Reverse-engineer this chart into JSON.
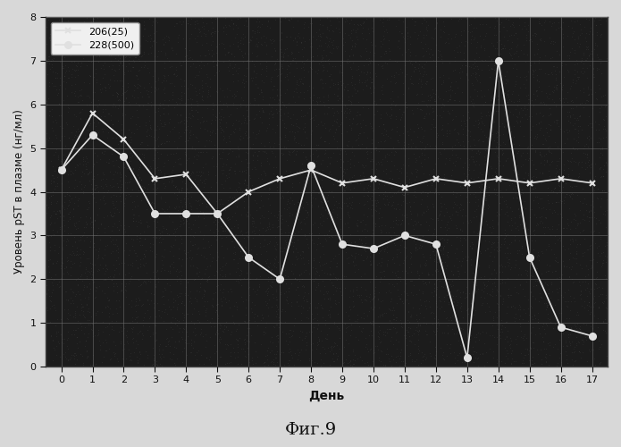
{
  "title": "",
  "xlabel": "День",
  "ylabel": "Уровень pST в плазме (нг/мл)",
  "caption": "Фиг.9",
  "xlim": [
    -0.5,
    17.5
  ],
  "ylim": [
    0.0,
    8.0
  ],
  "xticks": [
    0,
    1,
    2,
    3,
    4,
    5,
    6,
    7,
    8,
    9,
    10,
    11,
    12,
    13,
    14,
    15,
    16,
    17
  ],
  "yticks": [
    0.0,
    1.0,
    2.0,
    3.0,
    4.0,
    5.0,
    6.0,
    7.0,
    8.0
  ],
  "page_bg_color": "#d8d8d8",
  "plot_bg_color": "#1c1c1c",
  "grid_color": "#888888",
  "text_color": "#111111",
  "tick_label_color": "#111111",
  "line_color": "#e8e8e8",
  "legend_bg": "#f0f0f0",
  "series": [
    {
      "label": "206(25)",
      "marker": "x",
      "color": "#e0e0e0",
      "x": [
        0,
        1,
        2,
        3,
        4,
        5,
        6,
        7,
        8,
        9,
        10,
        11,
        12,
        13,
        14,
        15,
        16,
        17
      ],
      "y": [
        4.5,
        5.8,
        5.2,
        4.3,
        4.4,
        3.5,
        4.0,
        4.3,
        4.5,
        4.2,
        4.3,
        4.1,
        4.3,
        4.2,
        4.3,
        4.2,
        4.3,
        4.2
      ]
    },
    {
      "label": "228(500)",
      "marker": "o",
      "color": "#e0e0e0",
      "x": [
        0,
        1,
        2,
        3,
        4,
        5,
        6,
        7,
        8,
        9,
        10,
        11,
        12,
        13,
        14,
        15,
        16,
        17
      ],
      "y": [
        4.5,
        5.3,
        4.8,
        3.5,
        3.5,
        3.5,
        2.5,
        2.0,
        4.6,
        2.8,
        2.7,
        3.0,
        2.8,
        0.2,
        7.0,
        2.5,
        0.9,
        0.7
      ]
    }
  ]
}
